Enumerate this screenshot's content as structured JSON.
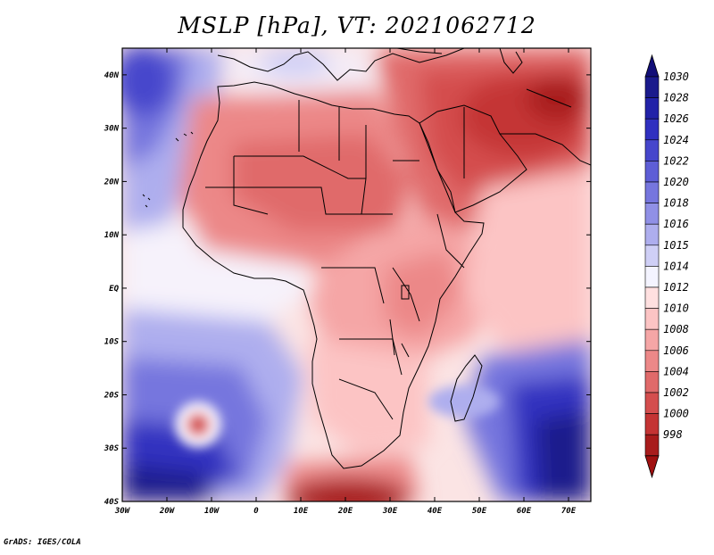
{
  "title": "MSLP [hPa], VT: 2021062712",
  "credit": "GrADS: IGES/COLA",
  "map": {
    "lon_range": [
      -30,
      75
    ],
    "lat_range": [
      -40,
      45
    ],
    "lon_ticks": [
      "30W",
      "20W",
      "10W",
      "0",
      "10E",
      "20E",
      "30E",
      "40E",
      "50E",
      "60E",
      "70E"
    ],
    "lat_ticks": [
      "40N",
      "30N",
      "20N",
      "10N",
      "EQ",
      "10S",
      "20S",
      "30S",
      "40S"
    ]
  },
  "colorbar": {
    "levels": [
      "1030",
      "1028",
      "1026",
      "1024",
      "1022",
      "1020",
      "1018",
      "1016",
      "1015",
      "1014",
      "1012",
      "1010",
      "1008",
      "1006",
      "1004",
      "1002",
      "1000",
      "998"
    ],
    "colors": [
      "#1a1a8c",
      "#2222a8",
      "#3030c0",
      "#4646cc",
      "#5e5ed6",
      "#7676de",
      "#9090e6",
      "#aeaeee",
      "#cfcff6",
      "#f4f4ff",
      "#ffe0e0",
      "#fcc4c4",
      "#f5a6a6",
      "#ec8888",
      "#e06a6a",
      "#d44e4e",
      "#c43434",
      "#a81c1c"
    ],
    "top_arrow_color": "#120e78",
    "bottom_arrow_color": "#a01010"
  }
}
